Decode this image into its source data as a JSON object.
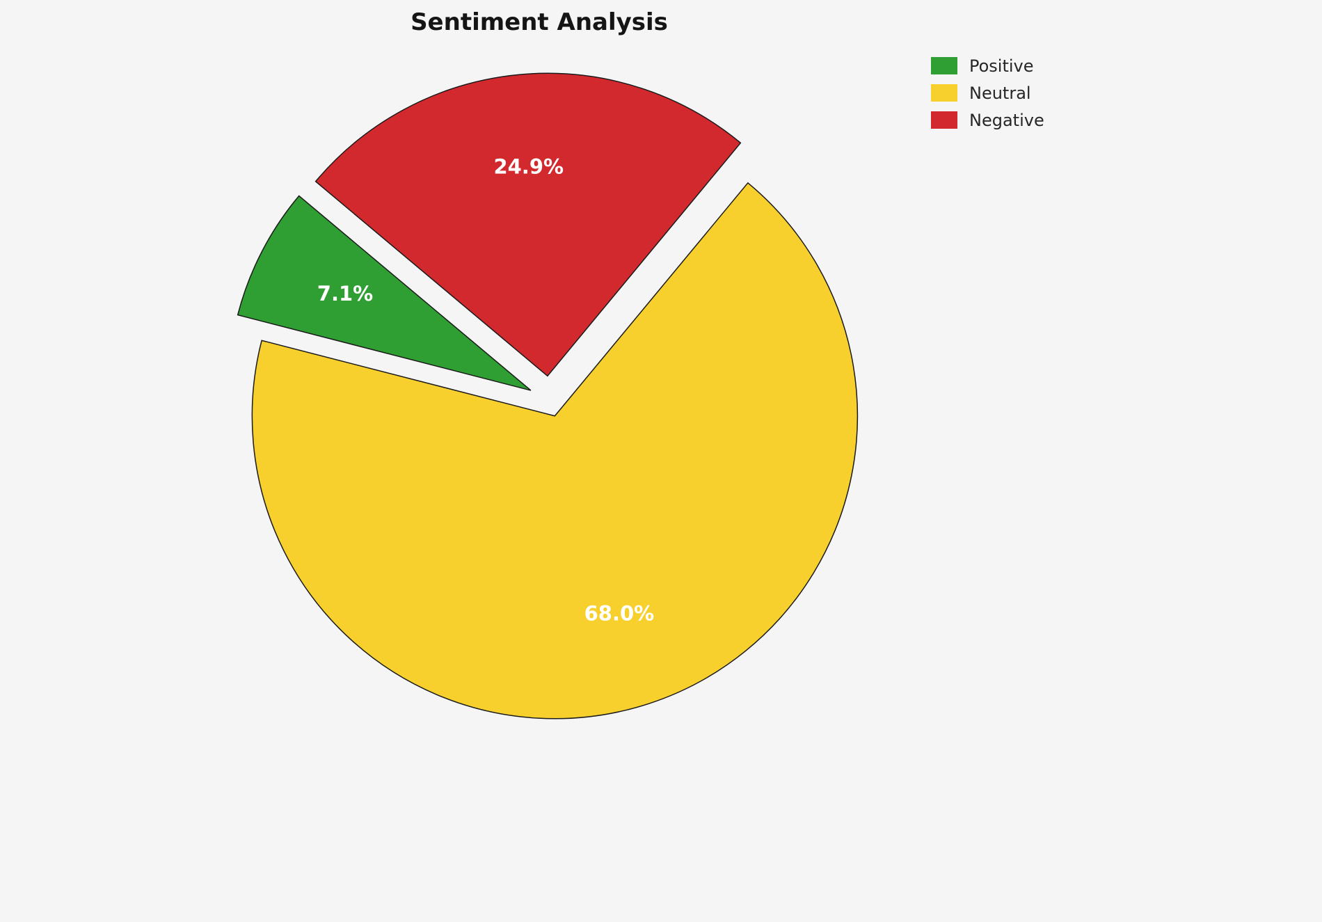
{
  "page": {
    "background_color": "#f5f5f6"
  },
  "chart_data": {
    "type": "pie",
    "title": "Sentiment Analysis",
    "categories": [
      "Positive",
      "Neutral",
      "Negative"
    ],
    "values": [
      7.1,
      68.0,
      24.9
    ],
    "percent_labels": [
      "7.1%",
      "68.0%",
      "24.9%"
    ],
    "colors": [
      "#2f9e33",
      "#f7d02e",
      "#d2292e"
    ],
    "start_angle": 140,
    "direction": "counterclockwise",
    "explode": [
      0.07,
      0.055,
      0.08
    ],
    "label_distance": 0.69,
    "label_color": "#ffffff",
    "edge_color": "#1a1a1a",
    "legend": {
      "position": "upper-right",
      "entries": [
        "Positive",
        "Neutral",
        "Negative"
      ]
    },
    "grid": false
  }
}
